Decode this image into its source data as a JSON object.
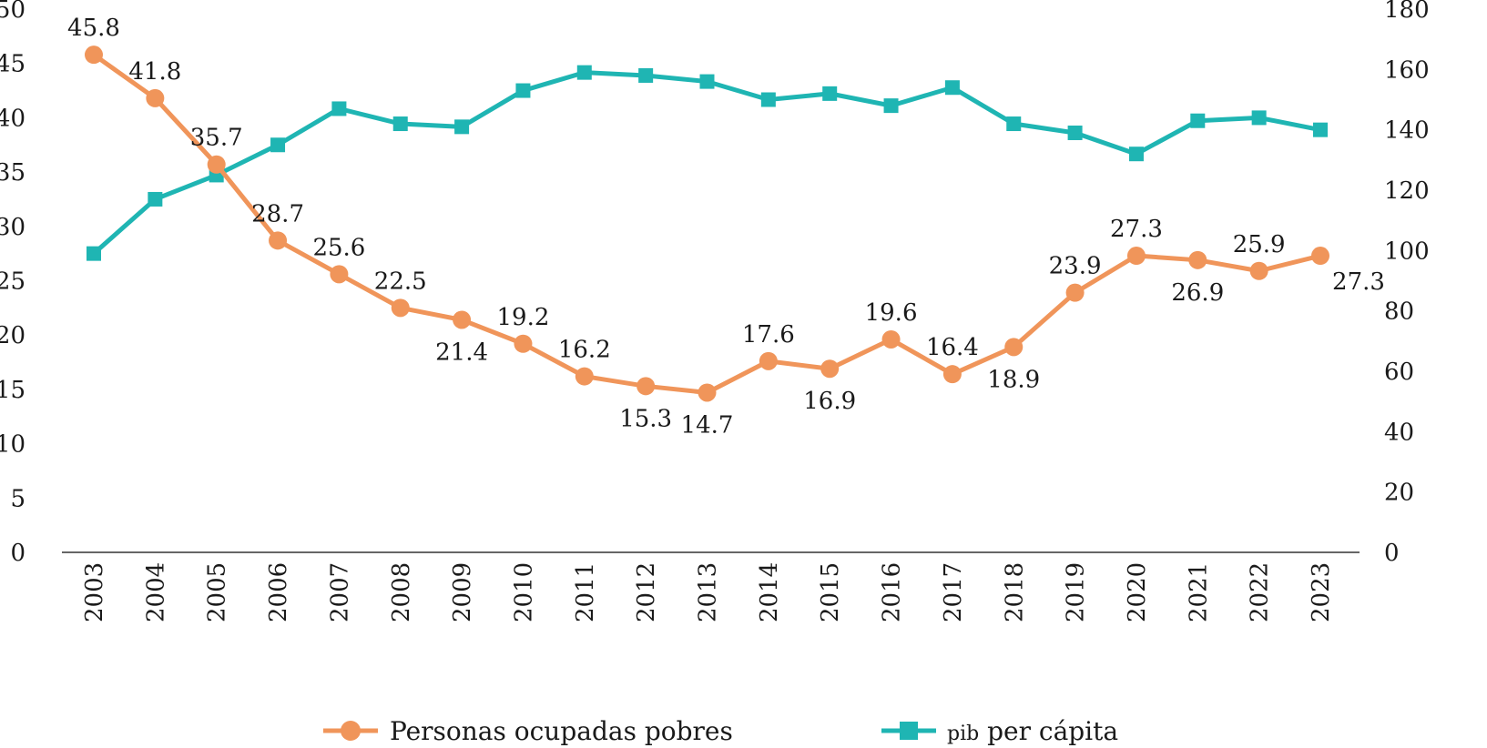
{
  "chart_data": {
    "type": "line",
    "title": "",
    "xlabel": "",
    "categories": [
      "2003",
      "2004",
      "2005",
      "2006",
      "2007",
      "2008",
      "2009",
      "2010",
      "2011",
      "2012",
      "2013",
      "2014",
      "2015",
      "2016",
      "2017",
      "2018",
      "2019",
      "2020",
      "2021",
      "2022",
      "2023"
    ],
    "left_axis": {
      "ylim": [
        0,
        50
      ],
      "ticks": [
        0,
        5,
        10,
        15,
        20,
        25,
        30,
        35,
        40,
        45,
        50
      ]
    },
    "right_axis": {
      "ylim": [
        0,
        180
      ],
      "ticks": [
        0,
        20,
        40,
        60,
        80,
        100,
        120,
        140,
        160,
        180
      ]
    },
    "series": [
      {
        "name": "Personas ocupadas pobres",
        "axis": "left",
        "marker": "circle",
        "color": "#F0955A",
        "values": [
          45.8,
          41.8,
          35.7,
          28.7,
          25.6,
          22.5,
          21.4,
          19.2,
          16.2,
          15.3,
          14.7,
          17.6,
          16.9,
          19.6,
          16.4,
          18.9,
          23.9,
          27.3,
          26.9,
          25.9,
          27.3
        ],
        "labels": [
          "45.8",
          "41.8",
          "35.7",
          "28.7",
          "25.6",
          "22.5",
          "21.4",
          "19.2",
          "16.2",
          "15.3",
          "14.7",
          "17.6",
          "16.9",
          "19.6",
          "16.4",
          "18.9",
          "23.9",
          "27.3",
          "26.9",
          "25.9",
          "27.3"
        ],
        "label_side": [
          "above",
          "above",
          "above",
          "above",
          "above",
          "above",
          "below",
          "above",
          "above",
          "below",
          "below",
          "above",
          "below",
          "above",
          "above",
          "below",
          "above",
          "above",
          "below",
          "above",
          "below"
        ]
      },
      {
        "name": "PIB per cápita",
        "axis": "right",
        "marker": "square",
        "color": "#1FB5B3",
        "values": [
          99,
          117,
          125,
          135,
          147,
          142,
          141,
          153,
          159,
          158,
          156,
          150,
          152,
          148,
          154,
          142,
          139,
          132,
          143,
          144,
          140
        ]
      }
    ],
    "legend": {
      "position": "bottom",
      "items": [
        {
          "text": "Personas ocupadas pobres"
        },
        {
          "prefix": "pib",
          "text": " per cápita"
        }
      ]
    }
  }
}
